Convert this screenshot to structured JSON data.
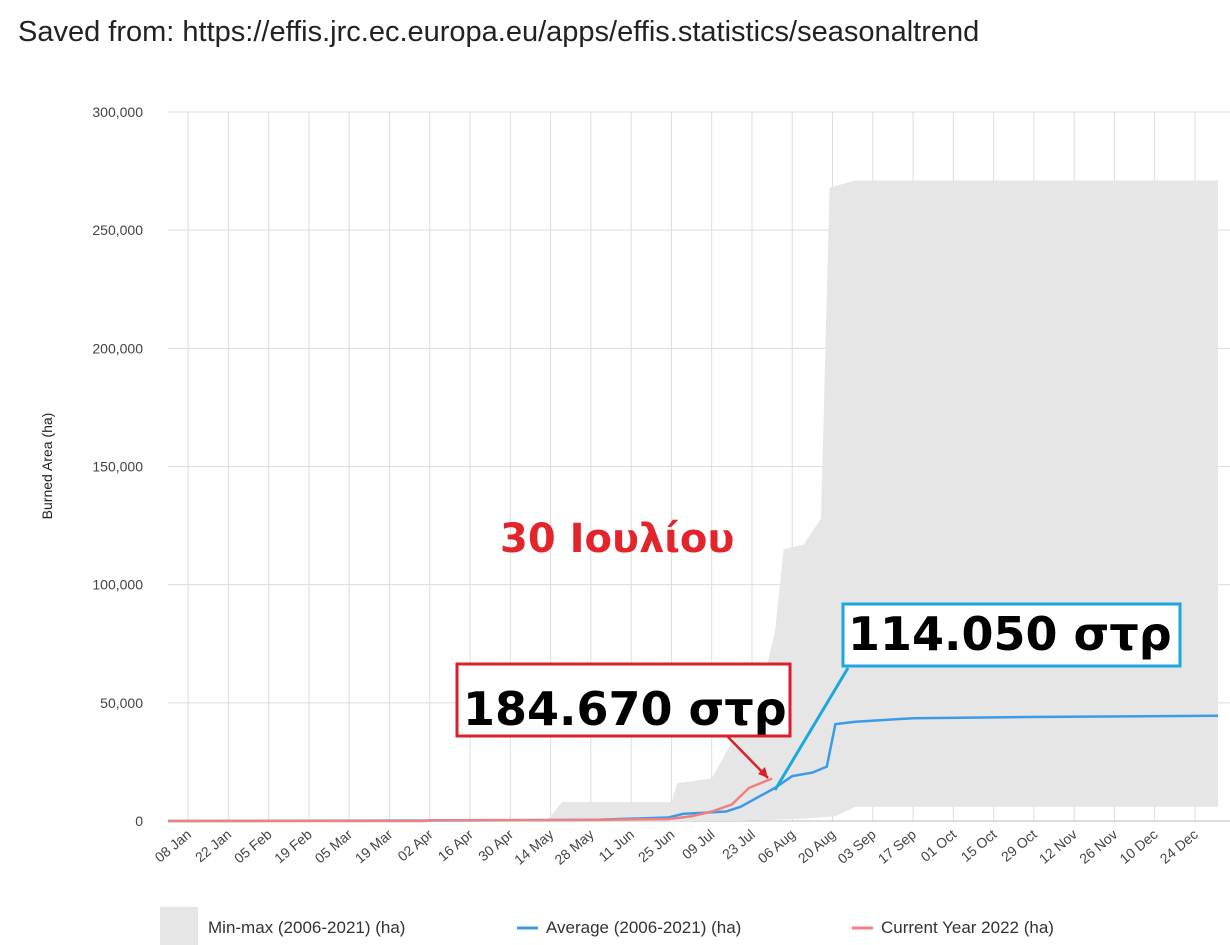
{
  "header": {
    "saved_text": "Saved from: https://effis.jrc.ec.europa.eu/apps/effis.statistics/seasonaltrend"
  },
  "colors": {
    "minmax_fill": "#e6e6e6",
    "average": "#3a9be8",
    "current": "#f08080",
    "grid": "#dddddd",
    "annotation_red": "#d9202a",
    "annotation_blue": "#1ea6e0"
  },
  "chart_data": {
    "type": "area+line",
    "ylabel": "Burned Area (ha)",
    "ylim": [
      0,
      300000
    ],
    "yticks": [
      0,
      50000,
      100000,
      150000,
      200000,
      250000,
      300000
    ],
    "ytick_labels": [
      "0",
      "50,000",
      "100,000",
      "150,000",
      "200,000",
      "250,000",
      "300,000"
    ],
    "x_range_days": [
      1,
      366
    ],
    "categories": [
      "08 Jan",
      "22 Jan",
      "05 Feb",
      "19 Feb",
      "05 Mar",
      "19 Mar",
      "02 Apr",
      "16 Apr",
      "30 Apr",
      "14 May",
      "28 May",
      "11 Jun",
      "25 Jun",
      "09 Jul",
      "23 Jul",
      "06 Aug",
      "20 Aug",
      "03 Sep",
      "17 Sep",
      "01 Oct",
      "15 Oct",
      "29 Oct",
      "12 Nov",
      "26 Nov",
      "10 Dec",
      "24 Dec"
    ],
    "category_days": [
      8,
      22,
      36,
      50,
      64,
      78,
      92,
      106,
      120,
      134,
      148,
      162,
      176,
      190,
      204,
      218,
      232,
      246,
      260,
      274,
      288,
      302,
      316,
      330,
      344,
      358
    ],
    "series": [
      {
        "name": "Min-max (2006-2021) (ha)",
        "type": "range",
        "upper": [
          [
            1,
            0
          ],
          [
            120,
            0
          ],
          [
            133,
            500
          ],
          [
            138,
            8000
          ],
          [
            176,
            8000
          ],
          [
            178,
            16000
          ],
          [
            190,
            18000
          ],
          [
            200,
            40000
          ],
          [
            208,
            60000
          ],
          [
            212,
            80000
          ],
          [
            215,
            115000
          ],
          [
            222,
            117000
          ],
          [
            228,
            128000
          ],
          [
            231,
            268000
          ],
          [
            240,
            271000
          ],
          [
            366,
            271000
          ]
        ],
        "lower": [
          [
            1,
            0
          ],
          [
            200,
            0
          ],
          [
            222,
            1000
          ],
          [
            233,
            2000
          ],
          [
            240,
            6000
          ],
          [
            366,
            6000
          ]
        ]
      },
      {
        "name": "Average (2006-2021) (ha)",
        "type": "line",
        "points": [
          [
            1,
            0
          ],
          [
            100,
            200
          ],
          [
            150,
            500
          ],
          [
            175,
            1500
          ],
          [
            180,
            3000
          ],
          [
            195,
            4000
          ],
          [
            200,
            6000
          ],
          [
            212,
            14000
          ],
          [
            218,
            19000
          ],
          [
            225,
            20500
          ],
          [
            230,
            23000
          ],
          [
            233,
            41000
          ],
          [
            240,
            42000
          ],
          [
            260,
            43500
          ],
          [
            300,
            44000
          ],
          [
            366,
            44500
          ]
        ]
      },
      {
        "name": "Current Year 2022 (ha)",
        "type": "line",
        "points": [
          [
            1,
            0
          ],
          [
            90,
            0
          ],
          [
            92,
            300
          ],
          [
            140,
            400
          ],
          [
            175,
            800
          ],
          [
            183,
            2000
          ],
          [
            190,
            4000
          ],
          [
            197,
            7000
          ],
          [
            203,
            14000
          ],
          [
            208,
            16500
          ],
          [
            211,
            18000
          ]
        ]
      }
    ],
    "annotations": {
      "date_label": "30 Ιουλίου",
      "current_total": "184.670 στρ",
      "average_total": "114.050 στρ"
    },
    "legend_position": "bottom"
  }
}
